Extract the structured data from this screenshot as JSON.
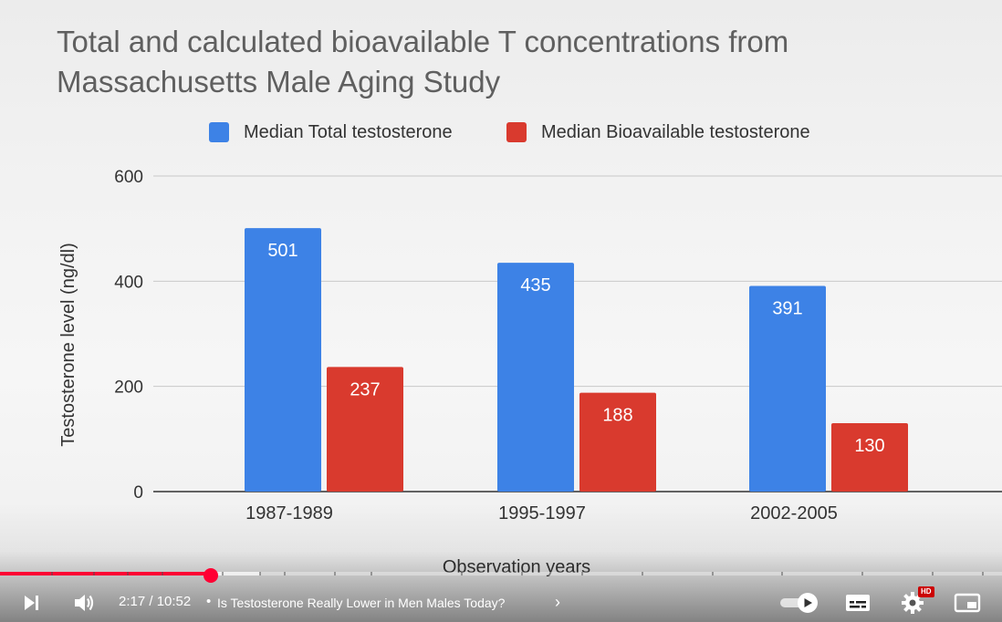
{
  "chart_data": {
    "type": "bar",
    "title": "Total and calculated bioavailable T concentrations from Massachusetts Male Aging Study",
    "xlabel": "Observation years",
    "ylabel": "Testosterone level (ng/dl)",
    "categories": [
      "1987-1989",
      "1995-1997",
      "2002-2005"
    ],
    "series": [
      {
        "name": "Median Total testosterone",
        "color": "#3d82e6",
        "values": [
          501,
          435,
          391
        ]
      },
      {
        "name": "Median Bioavailable testosterone",
        "color": "#d93a2e",
        "values": [
          237,
          188,
          130
        ]
      }
    ],
    "ylim": [
      0,
      600
    ],
    "yticks": [
      0,
      200,
      400,
      600
    ],
    "grid": true,
    "legend_position": "top"
  },
  "player": {
    "current_time": "2:17",
    "duration": "10:52",
    "time_display": "2:17 / 10:52",
    "separator": "•",
    "video_title": "Is Testosterone Really Lower in Men Males Today?",
    "chevron": "›",
    "hd_badge": "HD",
    "progress_fraction": 0.21,
    "buffer_fraction": 0.26,
    "accent_color": "#ff0033",
    "icons": {
      "next": "next-icon",
      "volume": "volume-icon",
      "autoplay": "autoplay-toggle-icon",
      "subtitles": "subtitles-icon",
      "settings": "settings-gear-icon",
      "miniplayer": "miniplayer-icon"
    }
  }
}
